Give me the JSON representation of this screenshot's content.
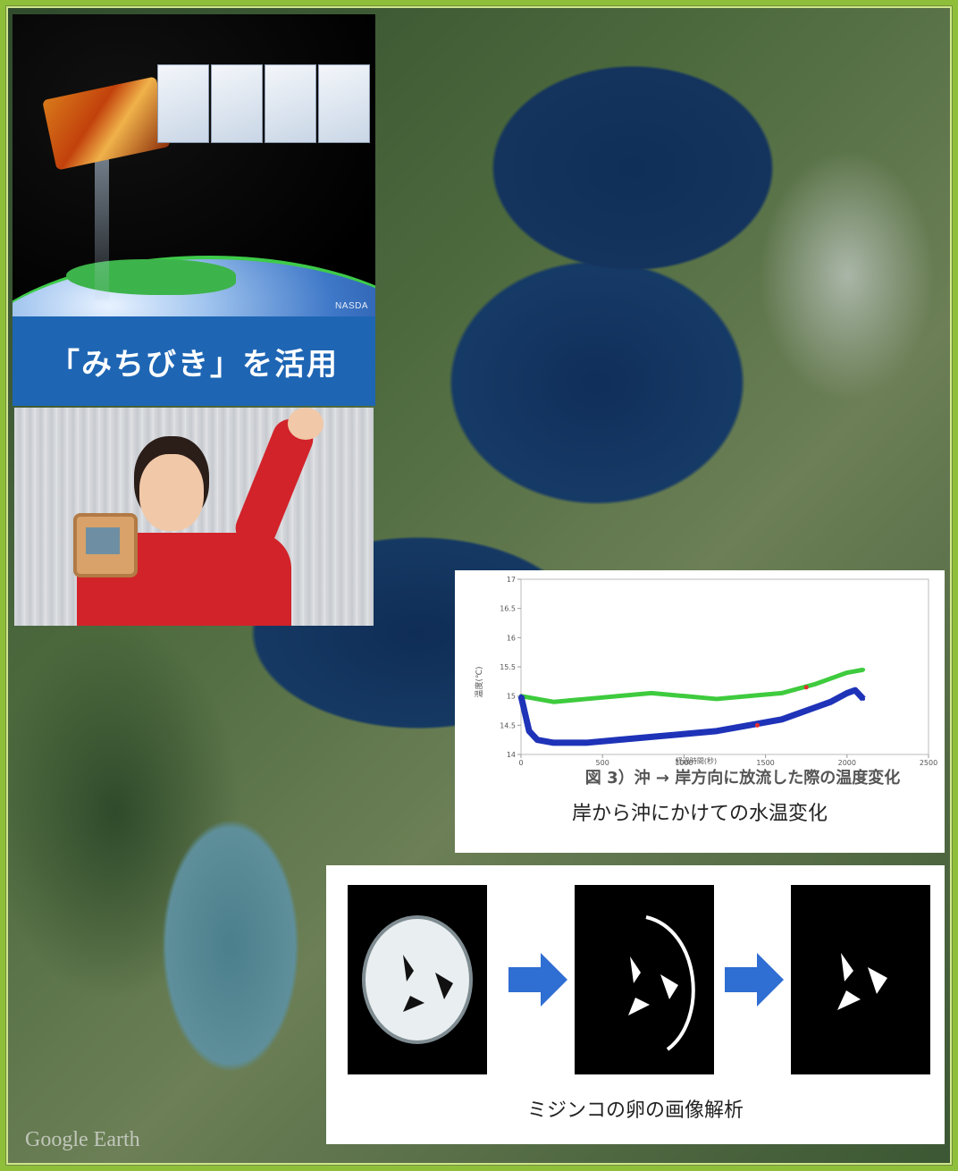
{
  "map": {
    "credit": "Google Earth"
  },
  "satellite": {
    "agency_label": "NASDA",
    "banner": "「みちびき」を活用"
  },
  "chart": {
    "caption_inner": "図 3）沖 → 岸方向に放流した際の温度変化",
    "caption": "岸から沖にかけての水温変化",
    "ylabel": "温度(℃)",
    "xlabel": "経過時間(秒)",
    "colors": {
      "green": "#3ecb3e",
      "blue": "#1f33b8",
      "red": "#e03030"
    }
  },
  "chart_data": {
    "type": "line",
    "xlim": [
      0,
      2500
    ],
    "ylim": [
      14,
      17
    ],
    "xticks": [
      "0",
      "500",
      "1000",
      "1500",
      "2000",
      "2500"
    ],
    "yticks": [
      "14",
      "14.5",
      "15",
      "15.5",
      "16",
      "16.5",
      "17"
    ],
    "series": [
      {
        "x": [
          0,
          100,
          200,
          400,
          600,
          800,
          1000,
          1200,
          1400,
          1600,
          1800,
          1900,
          2000,
          2100
        ],
        "y": [
          15.0,
          14.95,
          14.9,
          14.95,
          15.0,
          15.05,
          15.0,
          14.95,
          15.0,
          15.05,
          15.2,
          15.3,
          15.4,
          15.45
        ]
      },
      {
        "x": [
          0,
          50,
          100,
          200,
          400,
          600,
          800,
          1000,
          1200,
          1400,
          1600,
          1800,
          1900,
          2000,
          2050,
          2100
        ],
        "y": [
          15.0,
          14.4,
          14.25,
          14.2,
          14.2,
          14.25,
          14.3,
          14.35,
          14.4,
          14.5,
          14.6,
          14.8,
          14.9,
          15.05,
          15.1,
          14.95
        ]
      }
    ]
  },
  "egg": {
    "caption": "ミジンコの卵の画像解析"
  }
}
